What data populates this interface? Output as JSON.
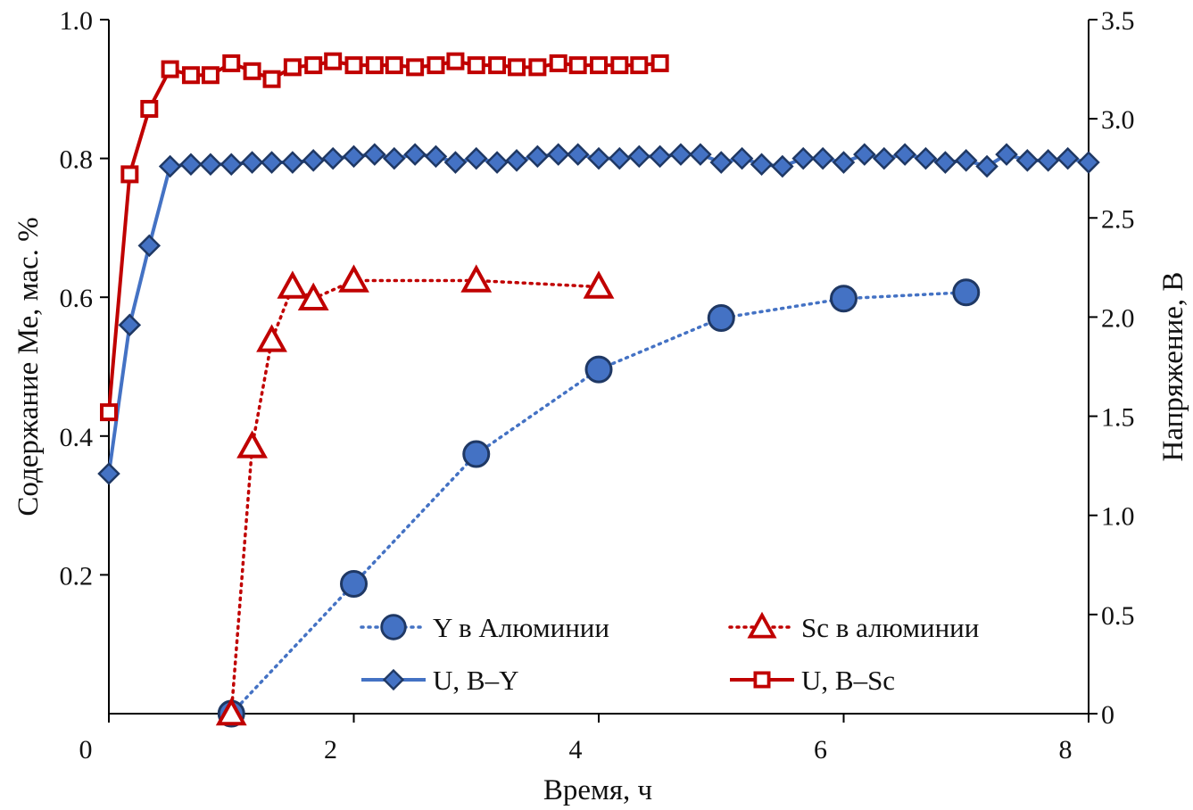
{
  "chart_data": {
    "type": "line",
    "xlabel": "Время, ч",
    "ylabel_left": "Содержание Ме, мас. %",
    "ylabel_right": "Напряжение, В",
    "xlim": [
      0,
      8
    ],
    "ylim_left": [
      0,
      1.0
    ],
    "ylim_right": [
      0,
      3.5
    ],
    "x_ticks": [
      "0",
      "2",
      "4",
      "6",
      "8"
    ],
    "y_left_ticks": [
      {
        "value": 0.2,
        "label": "0.2"
      },
      {
        "value": 0.4,
        "label": "0.4"
      },
      {
        "value": 0.6,
        "label": "0.6"
      },
      {
        "value": 0.8,
        "label": "0.8"
      },
      {
        "value": 1.0,
        "label": "1.0"
      }
    ],
    "y_right_ticks": [
      {
        "value": 0,
        "label": "0"
      },
      {
        "value": 0.5,
        "label": "0.5"
      },
      {
        "value": 1.0,
        "label": "1.0"
      },
      {
        "value": 1.5,
        "label": "1.5"
      },
      {
        "value": 2.0,
        "label": "2.0"
      },
      {
        "value": 2.5,
        "label": "2.5"
      },
      {
        "value": 3.0,
        "label": "3.0"
      },
      {
        "value": 3.5,
        "label": "3.5"
      }
    ],
    "grid": false,
    "legend_position": "bottom-right",
    "series": [
      {
        "name": "Y в Алюминии",
        "axis": "left",
        "style": "dotted",
        "marker": "circle",
        "color": "#4472C4",
        "x": [
          1.0,
          2.0,
          3.0,
          4.0,
          5.0,
          6.0,
          7.0
        ],
        "y": [
          0.0,
          0.187,
          0.374,
          0.496,
          0.57,
          0.598,
          0.607
        ]
      },
      {
        "name": "Sc в алюминии",
        "axis": "left",
        "style": "dotted",
        "marker": "triangle",
        "color": "#C00000",
        "x": [
          1.0,
          1.17,
          1.33,
          1.5,
          1.67,
          2.0,
          3.0,
          4.0
        ],
        "y": [
          0.0,
          0.385,
          0.538,
          0.615,
          0.598,
          0.624,
          0.624,
          0.615
        ]
      },
      {
        "name": "U, В–Y",
        "axis": "right",
        "style": "solid",
        "marker": "diamond",
        "color": "#4472C4",
        "x": [
          0.0,
          0.17,
          0.33,
          0.5,
          0.67,
          0.83,
          1.0,
          1.17,
          1.33,
          1.5,
          1.67,
          1.83,
          2.0,
          2.17,
          2.33,
          2.5,
          2.67,
          2.83,
          3.0,
          3.17,
          3.33,
          3.5,
          3.67,
          3.83,
          4.0,
          4.17,
          4.33,
          4.5,
          4.67,
          4.83,
          5.0,
          5.17,
          5.33,
          5.5,
          5.67,
          5.83,
          6.0,
          6.17,
          6.33,
          6.5,
          6.67,
          6.83,
          7.0,
          7.17,
          7.33,
          7.5,
          7.67,
          7.83,
          8.0
        ],
        "y": [
          1.21,
          1.96,
          2.36,
          2.76,
          2.77,
          2.77,
          2.77,
          2.78,
          2.78,
          2.78,
          2.79,
          2.8,
          2.81,
          2.82,
          2.8,
          2.82,
          2.81,
          2.78,
          2.8,
          2.78,
          2.79,
          2.81,
          2.82,
          2.82,
          2.8,
          2.8,
          2.81,
          2.81,
          2.82,
          2.82,
          2.78,
          2.8,
          2.77,
          2.76,
          2.8,
          2.8,
          2.78,
          2.82,
          2.8,
          2.82,
          2.8,
          2.78,
          2.79,
          2.76,
          2.82,
          2.79,
          2.79,
          2.8,
          2.78
        ]
      },
      {
        "name": "U, В–Sc",
        "axis": "right",
        "style": "solid",
        "marker": "square",
        "color": "#C00000",
        "x": [
          0.0,
          0.17,
          0.33,
          0.5,
          0.67,
          0.83,
          1.0,
          1.17,
          1.33,
          1.5,
          1.67,
          1.83,
          2.0,
          2.17,
          2.33,
          2.5,
          2.67,
          2.83,
          3.0,
          3.17,
          3.33,
          3.5,
          3.67,
          3.83,
          4.0,
          4.17,
          4.33,
          4.5
        ],
        "y": [
          1.52,
          2.72,
          3.05,
          3.25,
          3.22,
          3.22,
          3.28,
          3.24,
          3.2,
          3.26,
          3.27,
          3.29,
          3.27,
          3.27,
          3.27,
          3.26,
          3.27,
          3.29,
          3.27,
          3.27,
          3.26,
          3.26,
          3.28,
          3.27,
          3.27,
          3.27,
          3.27,
          3.28
        ]
      }
    ]
  }
}
